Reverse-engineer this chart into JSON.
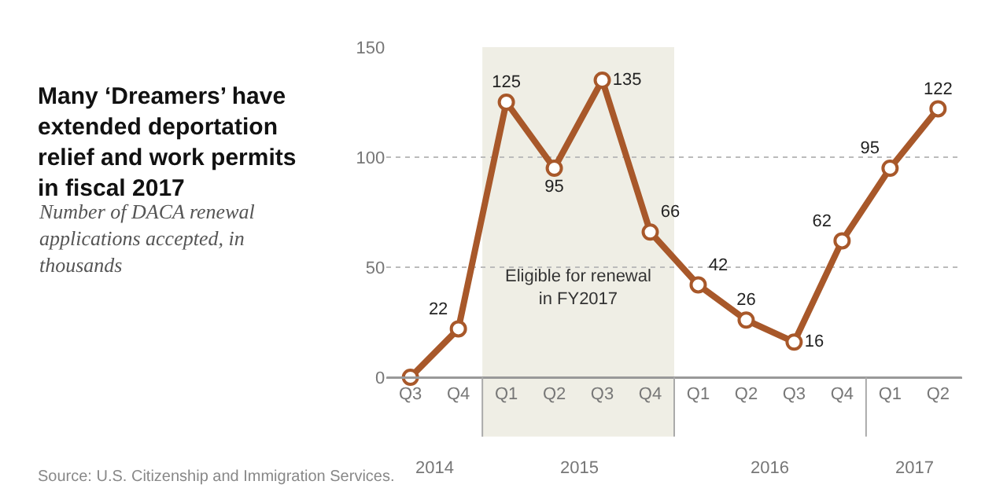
{
  "chart_data": {
    "type": "line",
    "title": "Many ‘Dreamers’ have\nextended deportation\nrelief and work permits\nin fiscal 2017",
    "subtitle": "Number of DACA renewal\napplications accepted, in\nthousands",
    "categories": [
      "Q3",
      "Q4",
      "Q1",
      "Q2",
      "Q3",
      "Q4",
      "Q1",
      "Q2",
      "Q3",
      "Q4",
      "Q1",
      "Q2"
    ],
    "series": [
      {
        "color": "#a8582a",
        "values": [
          0,
          22,
          125,
          95,
          135,
          66,
          42,
          26,
          16,
          62,
          95,
          122
        ],
        "value_labels": [
          null,
          "22",
          "125",
          "95",
          "135",
          "66",
          "42",
          "26",
          "16",
          "62",
          "95",
          "122"
        ]
      }
    ],
    "ylim": [
      0,
      150
    ],
    "yticks": [
      0,
      50,
      100,
      150
    ],
    "grid": "y",
    "marker": "circle",
    "line_style": "solid",
    "legend": false,
    "annotations": [
      "2014",
      "2015",
      "2016",
      "2017",
      "Eligible for renewal\nin FY2017",
      "Source: U.S. Citizenship and Immigration Services."
    ]
  }
}
